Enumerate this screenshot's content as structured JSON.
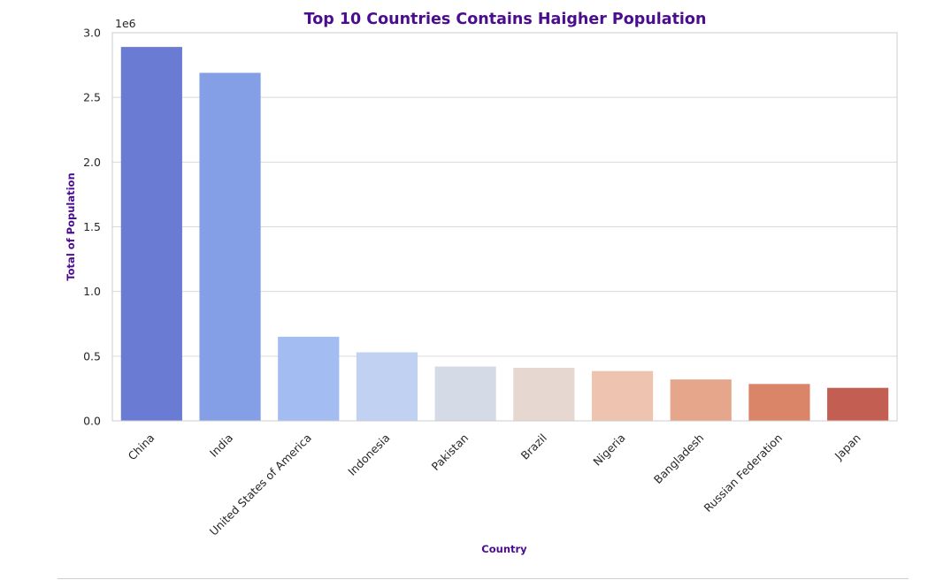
{
  "chart_data": {
    "type": "bar",
    "title": "Top 10 Countries Contains Haigher Population",
    "xlabel": "Country",
    "ylabel": "Total of Population",
    "y_scale_label": "1e6",
    "ylim": [
      0,
      3.0
    ],
    "y_ticks": [
      "0.0",
      "0.5",
      "1.0",
      "1.5",
      "2.0",
      "2.5",
      "3.0"
    ],
    "y_tick_values": [
      0,
      0.5,
      1.0,
      1.5,
      2.0,
      2.5,
      3.0
    ],
    "grid": true,
    "categories": [
      "China",
      "India",
      "United States of America",
      "Indonesia",
      "Pakistan",
      "Brazil",
      "Nigeria",
      "Bangladesh",
      "Russian Federation",
      "Japan"
    ],
    "values": [
      2.89,
      2.69,
      0.65,
      0.53,
      0.42,
      0.41,
      0.385,
      0.32,
      0.285,
      0.255
    ],
    "colors": [
      "#6a7bd4",
      "#849fe6",
      "#a3bcf2",
      "#c0d1f2",
      "#d5dbe6",
      "#e6d8d0",
      "#eec4b0",
      "#e6a68b",
      "#da8468",
      "#c35e52"
    ],
    "title_color": "#4b0d8f",
    "label_color": "#4b0d8f"
  }
}
